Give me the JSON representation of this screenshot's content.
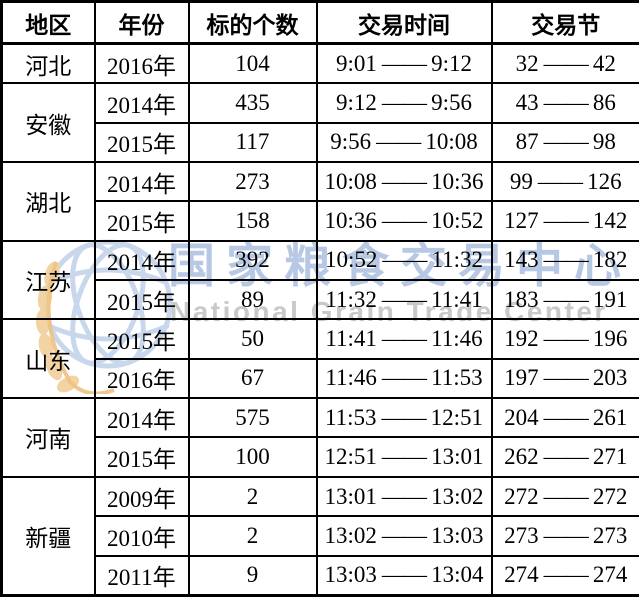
{
  "watermark": {
    "logo": "globe-wheat-logo",
    "text_cn": "国家粮食交易中心",
    "text_en": "National Grain Trade Center",
    "color_cn": "#b6c8e4",
    "color_en": "#c9c9c9",
    "globe_color": "#c3d3ea",
    "wheat_color": "#f2d2a0"
  },
  "table": {
    "headers": [
      "地区",
      "年份",
      "标的个数",
      "交易时间",
      "交易节"
    ],
    "range_dash": "——",
    "border_color": "#000000",
    "groups": [
      {
        "region": "河北",
        "rows": [
          {
            "year": "2016年",
            "count": "104",
            "time": [
              "9:01",
              "9:12"
            ],
            "session": [
              "32",
              "42"
            ]
          }
        ]
      },
      {
        "region": "安徽",
        "rows": [
          {
            "year": "2014年",
            "count": "435",
            "time": [
              "9:12",
              "9:56"
            ],
            "session": [
              "43",
              "86"
            ]
          },
          {
            "year": "2015年",
            "count": "117",
            "time": [
              "9:56",
              "10:08"
            ],
            "session": [
              "87",
              "98"
            ]
          }
        ]
      },
      {
        "region": "湖北",
        "rows": [
          {
            "year": "2014年",
            "count": "273",
            "time": [
              "10:08",
              "10:36"
            ],
            "session": [
              "99",
              "126"
            ]
          },
          {
            "year": "2015年",
            "count": "158",
            "time": [
              "10:36",
              "10:52"
            ],
            "session": [
              "127",
              "142"
            ]
          }
        ]
      },
      {
        "region": "江苏",
        "rows": [
          {
            "year": "2014年",
            "count": "392",
            "time": [
              "10:52",
              "11:32"
            ],
            "session": [
              "143",
              "182"
            ]
          },
          {
            "year": "2015年",
            "count": "89",
            "time": [
              "11:32",
              "11:41"
            ],
            "session": [
              "183",
              "191"
            ]
          }
        ]
      },
      {
        "region": "山东",
        "rows": [
          {
            "year": "2015年",
            "count": "50",
            "time": [
              "11:41",
              "11:46"
            ],
            "session": [
              "192",
              "196"
            ]
          },
          {
            "year": "2016年",
            "count": "67",
            "time": [
              "11:46",
              "11:53"
            ],
            "session": [
              "197",
              "203"
            ]
          }
        ]
      },
      {
        "region": "河南",
        "rows": [
          {
            "year": "2014年",
            "count": "575",
            "time": [
              "11:53",
              "12:51"
            ],
            "session": [
              "204",
              "261"
            ]
          },
          {
            "year": "2015年",
            "count": "100",
            "time": [
              "12:51",
              "13:01"
            ],
            "session": [
              "262",
              "271"
            ]
          }
        ]
      },
      {
        "region": "新疆",
        "rows": [
          {
            "year": "2009年",
            "count": "2",
            "time": [
              "13:01",
              "13:02"
            ],
            "session": [
              "272",
              "272"
            ]
          },
          {
            "year": "2010年",
            "count": "2",
            "time": [
              "13:02",
              "13:03"
            ],
            "session": [
              "273",
              "273"
            ]
          },
          {
            "year": "2011年",
            "count": "9",
            "time": [
              "13:03",
              "13:04"
            ],
            "session": [
              "274",
              "274"
            ]
          }
        ]
      }
    ]
  }
}
